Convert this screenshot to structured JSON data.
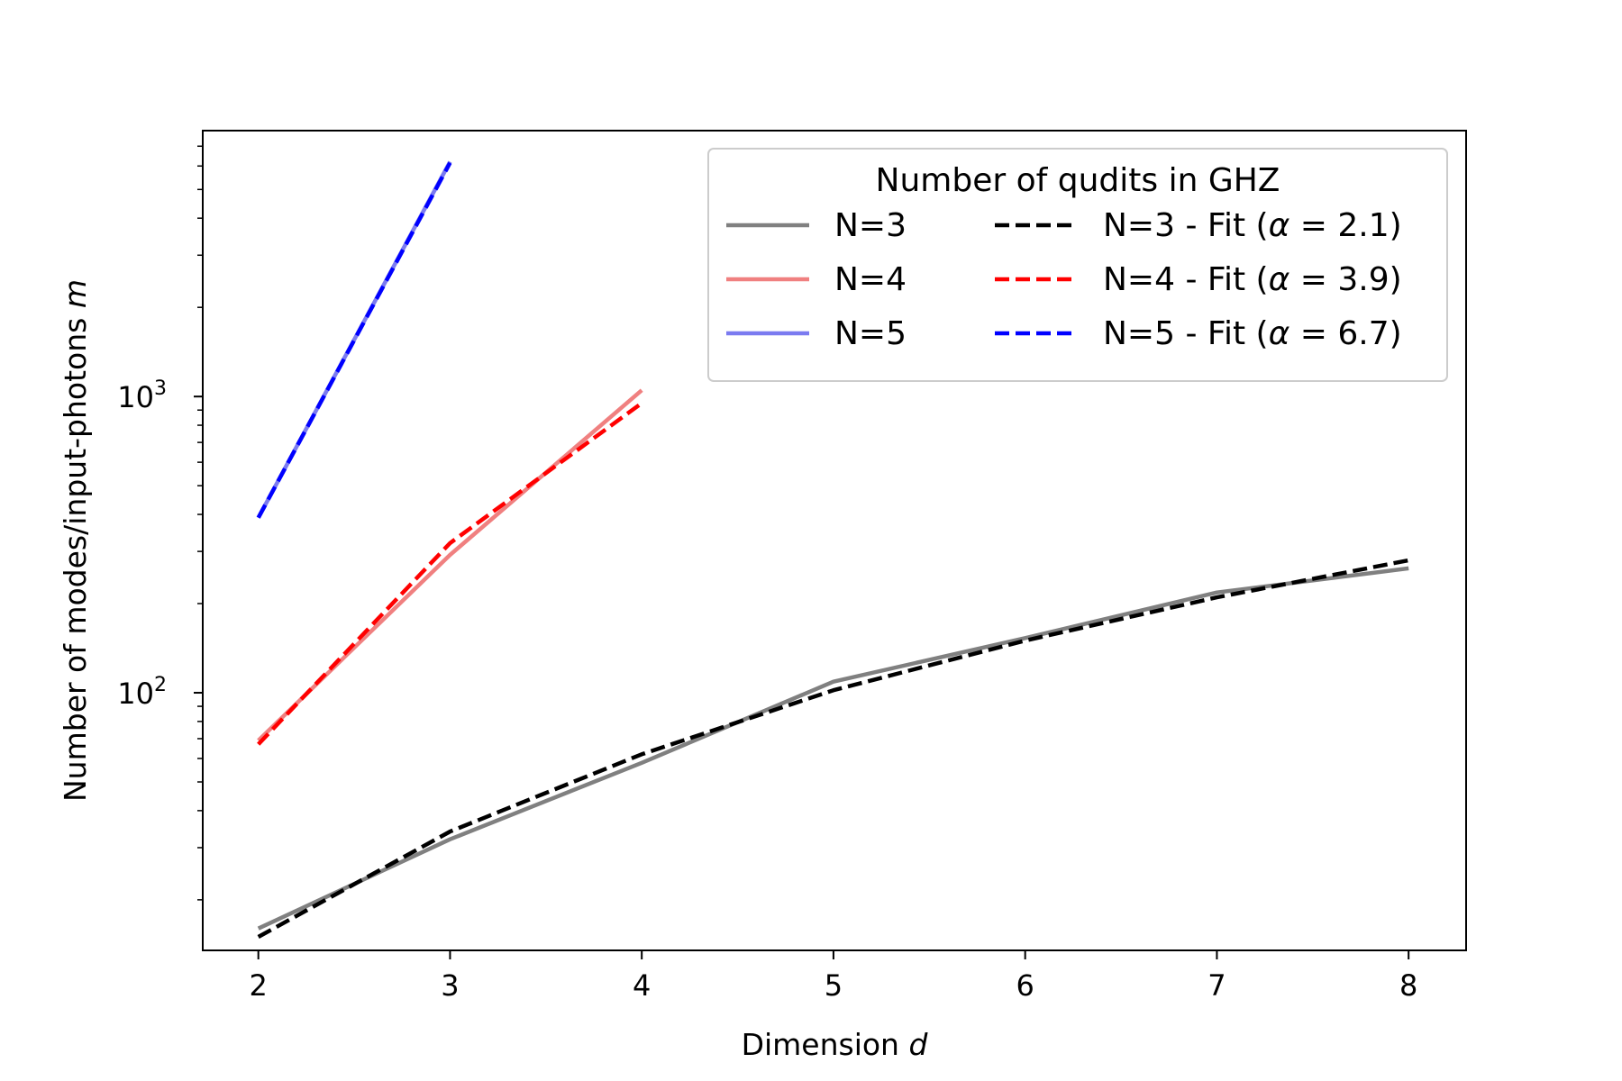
{
  "chart_data": {
    "type": "line",
    "title": "",
    "xlabel": "Dimension",
    "xlabel_var": "d",
    "ylabel": "Number of modes/input-photons",
    "ylabel_var": "m",
    "x_ticks": [
      2,
      3,
      4,
      5,
      6,
      7,
      8
    ],
    "xlim": [
      1.71,
      8.3
    ],
    "y_scale": "log",
    "ylim": [
      13.5,
      7900
    ],
    "y_ticks": [
      {
        "value": 100,
        "base": "10",
        "exp": "2"
      },
      {
        "value": 1000,
        "base": "10",
        "exp": "3"
      }
    ],
    "grid": false,
    "legend": {
      "title": "Number of qudits in GHZ",
      "position": "top-right",
      "columns": 2
    },
    "series": [
      {
        "name": "N=3",
        "style": "solid",
        "color": "#808080",
        "x": [
          2,
          3,
          4,
          5,
          6,
          7,
          8
        ],
        "y": [
          16,
          32,
          58,
          109,
          153,
          218,
          263
        ]
      },
      {
        "name": "N=4",
        "style": "solid",
        "color": "#f08080",
        "x": [
          2,
          3,
          4
        ],
        "y": [
          69,
          292,
          1050
        ]
      },
      {
        "name": "N=5",
        "style": "solid",
        "color": "#7b7bf0",
        "x": [
          2,
          3
        ],
        "y": [
          390,
          6200
        ]
      },
      {
        "name": "N=3 - Fit",
        "alpha": "2.1",
        "style": "dashed",
        "color": "#000000",
        "x": [
          2,
          3,
          4,
          5,
          6,
          7,
          8
        ],
        "y": [
          15,
          34,
          62,
          102,
          150,
          210,
          280
        ]
      },
      {
        "name": "N=4 - Fit",
        "alpha": "3.9",
        "style": "dashed",
        "color": "#ff0000",
        "x": [
          2,
          3,
          4
        ],
        "y": [
          67,
          320,
          950
        ]
      },
      {
        "name": "N=5 - Fit",
        "alpha": "6.7",
        "style": "dashed",
        "color": "#0000ff",
        "x": [
          2,
          3
        ],
        "y": [
          390,
          6150
        ]
      }
    ]
  }
}
